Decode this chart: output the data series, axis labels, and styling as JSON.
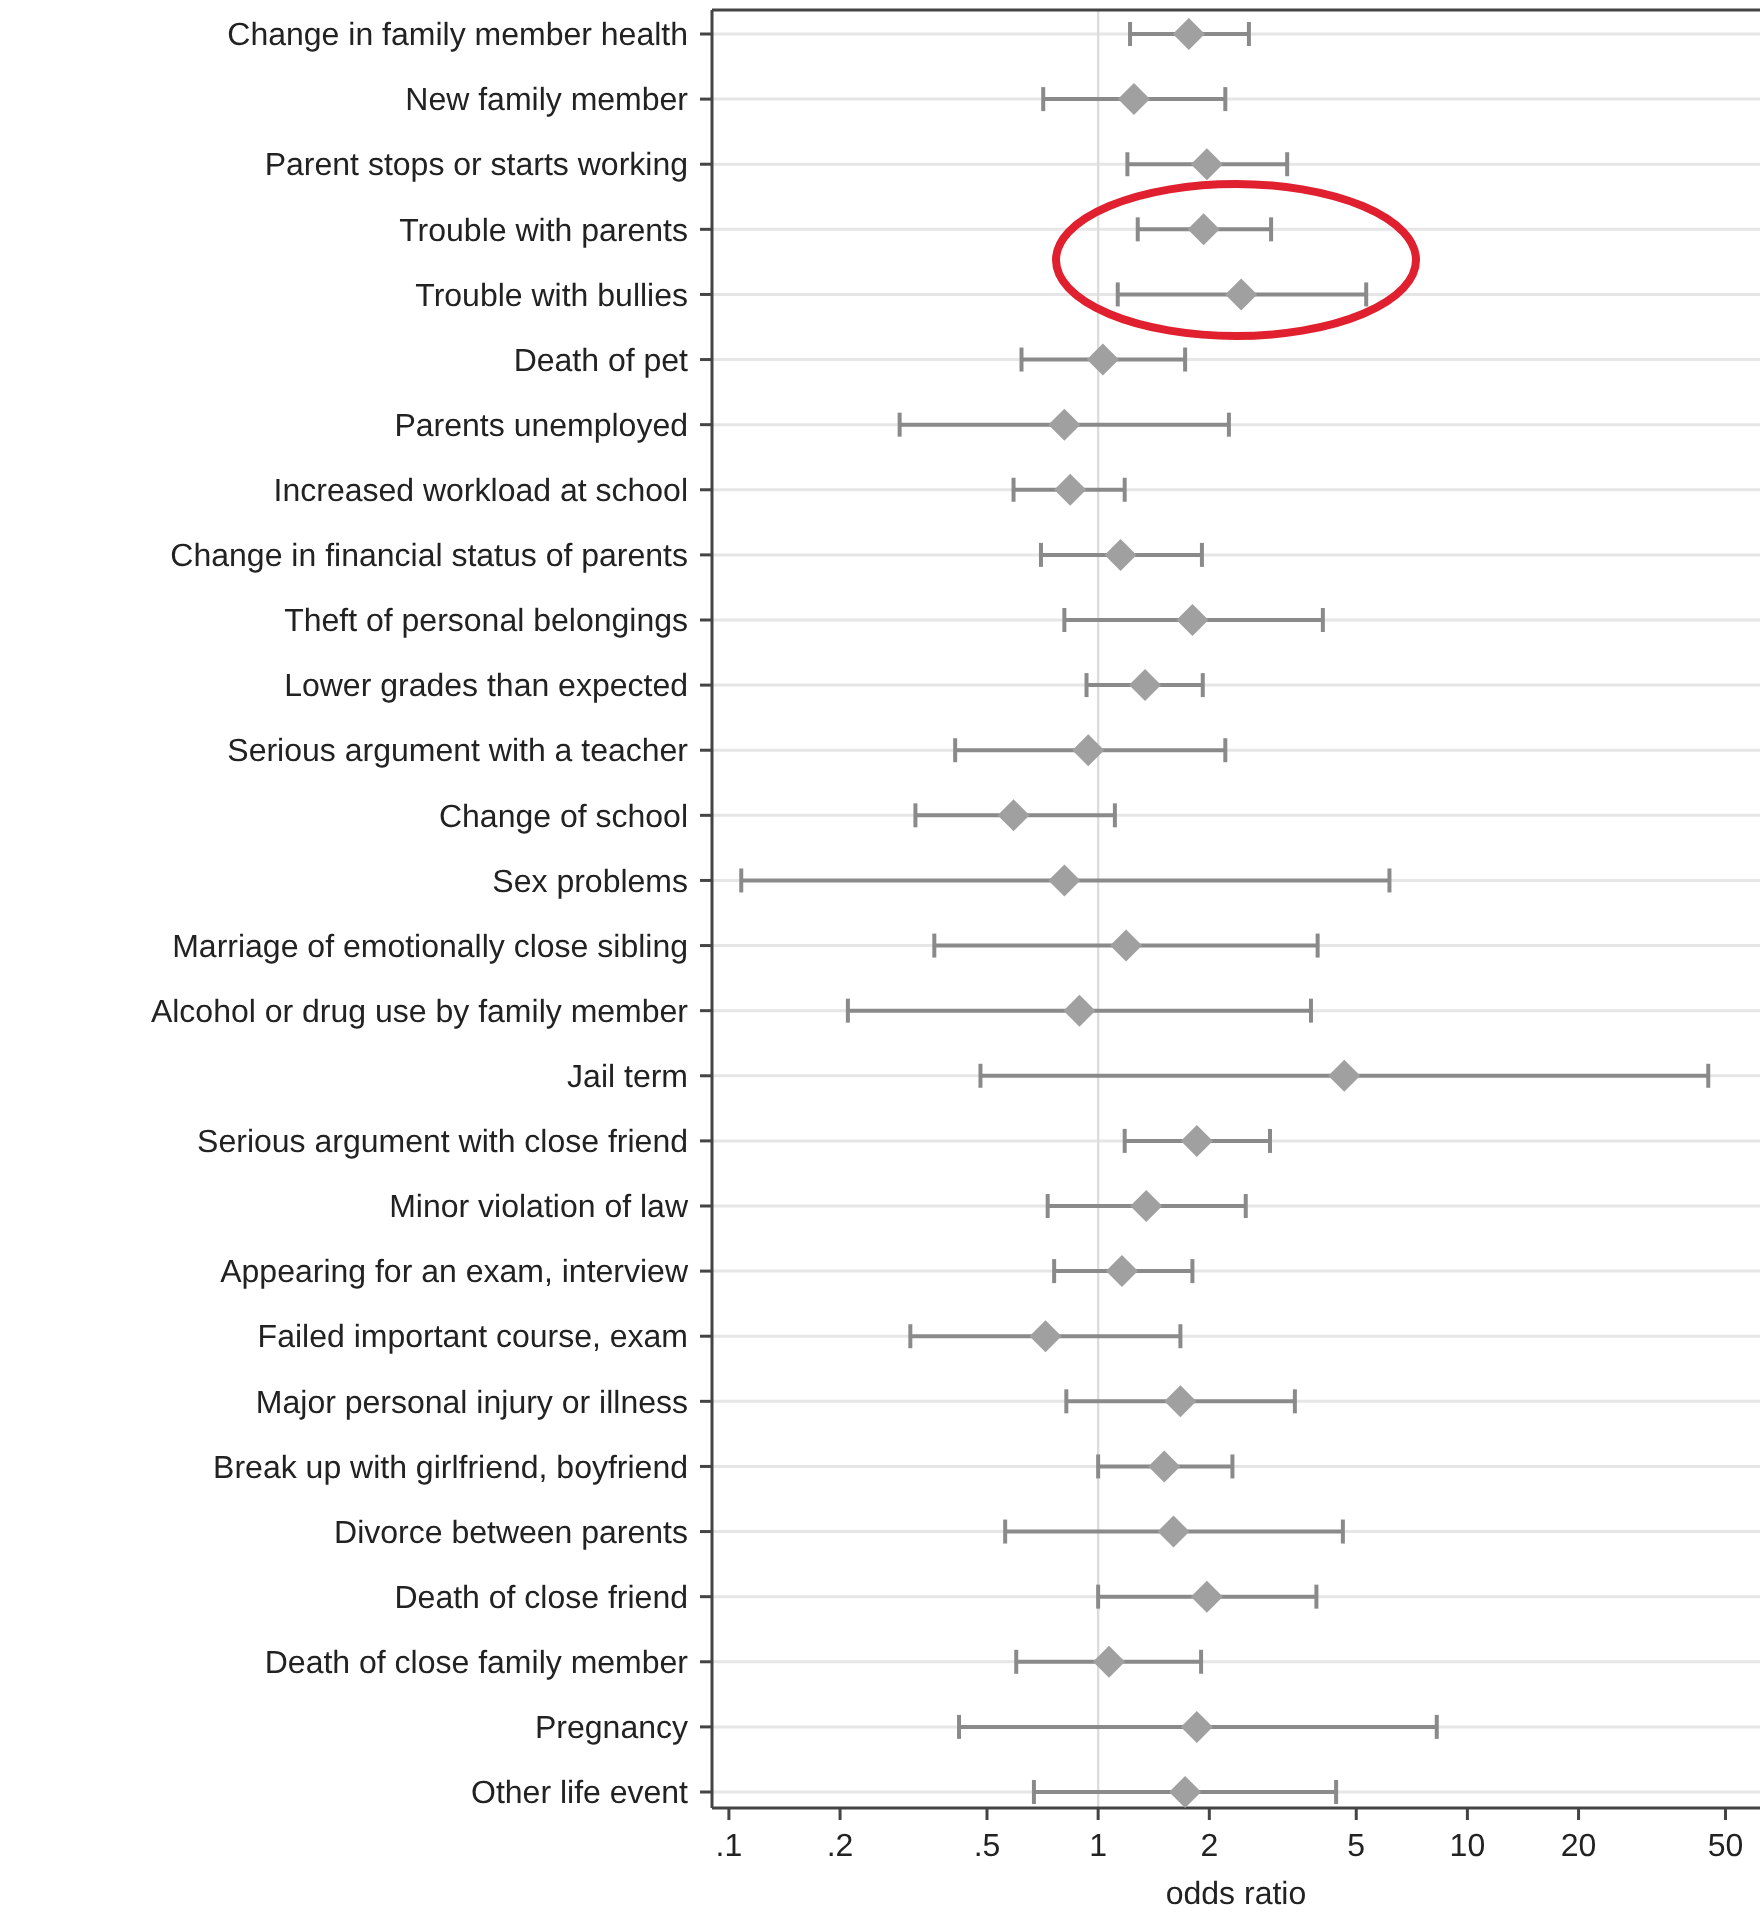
{
  "chart_data": {
    "type": "scatter",
    "orientation": "horizontal",
    "xlabel": "odds ratio",
    "categories": [
      "Change in family member health",
      "New family member",
      "Parent stops or starts working",
      "Trouble with parents",
      "Trouble with bullies",
      "Death of pet",
      "Parents unemployed",
      "Increased workload at school",
      "Change in financial status of parents",
      "Theft of personal belongings",
      "Lower grades than expected",
      "Serious argument with a teacher",
      "Change of school",
      "Sex problems",
      "Marriage of emotionally close sibling",
      "Alcohol or drug use by family member",
      "Jail term",
      "Serious argument with close friend",
      "Minor violation of law",
      "Appearing for an exam, interview",
      "Failed important course, exam",
      "Major personal injury or illness",
      "Break up with girlfriend, boyfriend",
      "Divorce between parents",
      "Death of close friend",
      "Death of close family member",
      "Pregnancy",
      "Other life event"
    ],
    "values": [
      1.76,
      1.25,
      1.97,
      1.93,
      2.44,
      1.03,
      0.81,
      0.84,
      1.15,
      1.8,
      1.34,
      0.94,
      0.59,
      0.81,
      1.19,
      0.89,
      4.64,
      1.85,
      1.35,
      1.16,
      0.72,
      1.67,
      1.51,
      1.6,
      1.97,
      1.07,
      1.85,
      1.72
    ],
    "errors": [
      [
        1.22,
        2.56
      ],
      [
        0.71,
        2.21
      ],
      [
        1.2,
        3.25
      ],
      [
        1.28,
        2.94
      ],
      [
        1.13,
        5.32
      ],
      [
        0.62,
        1.72
      ],
      [
        0.29,
        2.26
      ],
      [
        0.59,
        1.18
      ],
      [
        0.7,
        1.91
      ],
      [
        0.81,
        4.06
      ],
      [
        0.93,
        1.92
      ],
      [
        0.41,
        2.21
      ],
      [
        0.32,
        1.11
      ],
      [
        0.108,
        6.15
      ],
      [
        0.36,
        3.93
      ],
      [
        0.21,
        3.77
      ],
      [
        0.48,
        44.9
      ],
      [
        1.18,
        2.92
      ],
      [
        0.73,
        2.51
      ],
      [
        0.76,
        1.8
      ],
      [
        0.31,
        1.67
      ],
      [
        0.82,
        3.41
      ],
      [
        1.0,
        2.31
      ],
      [
        0.56,
        4.6
      ],
      [
        1.0,
        3.9
      ],
      [
        0.6,
        1.9
      ],
      [
        0.42,
        8.26
      ],
      [
        0.67,
        4.41
      ]
    ],
    "color": "#a0a0a0",
    "marker": "diamond",
    "log": "x",
    "grid": "y",
    "xlim": [
      0.09,
      62
    ],
    "xticks": [
      {
        "value": 0.1,
        "label": ".1"
      },
      {
        "value": 0.2,
        "label": ".2"
      },
      {
        "value": 0.5,
        "label": ".5"
      },
      1,
      2,
      5,
      10,
      20,
      50
    ],
    "ref_lines": [
      {
        "axis": "x",
        "value": 1,
        "color": "#dcdcdc"
      }
    ]
  }
}
